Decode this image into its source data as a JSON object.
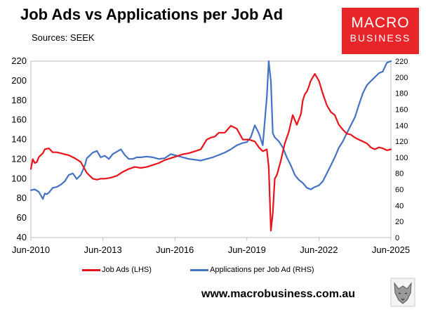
{
  "header": {
    "title": "Job Ads vs Applications per Job Ad",
    "subtitle": "Sources: SEEK"
  },
  "logo": {
    "line1": "MACRO",
    "line2": "BUSINESS"
  },
  "footer": {
    "website": "www.macrobusiness.com.au"
  },
  "chart_data": {
    "type": "line",
    "title": "Job Ads vs Applications per Job Ad",
    "xlabel": "",
    "ylabel_left": "",
    "ylabel_right": "",
    "x_ticks": [
      "Jun-2010",
      "Jun-2013",
      "Jun-2016",
      "Jun-2019",
      "Jun-2022",
      "Jun-2025"
    ],
    "y_left_ticks": [
      "40",
      "60",
      "80",
      "100",
      "120",
      "140",
      "160",
      "180",
      "200",
      "220"
    ],
    "y_right_ticks": [
      "0",
      "20",
      "40",
      "60",
      "80",
      "100",
      "120",
      "140",
      "160",
      "180",
      "200",
      "220"
    ],
    "ylim_left": [
      40,
      220
    ],
    "ylim_right": [
      0,
      220
    ],
    "xlim": [
      2010.42,
      2025.42
    ],
    "grid": false,
    "legend_position": "bottom",
    "series": [
      {
        "name": "Job Ads (LHS)",
        "axis": "left",
        "color": "#e8141b",
        "x": [
          2010.42,
          2010.5,
          2010.58,
          2010.67,
          2010.75,
          2010.83,
          2010.92,
          2011.0,
          2011.17,
          2011.33,
          2011.5,
          2011.67,
          2011.83,
          2012.0,
          2012.25,
          2012.5,
          2012.75,
          2013.0,
          2013.17,
          2013.33,
          2013.5,
          2013.75,
          2014.0,
          2014.25,
          2014.5,
          2014.75,
          2015.0,
          2015.25,
          2015.5,
          2015.75,
          2016.0,
          2016.25,
          2016.5,
          2016.75,
          2017.0,
          2017.25,
          2017.5,
          2017.75,
          2017.92,
          2018.08,
          2018.25,
          2018.5,
          2018.75,
          2019.0,
          2019.25,
          2019.5,
          2019.75,
          2019.92,
          2020.08,
          2020.25,
          2020.33,
          2020.42,
          2020.5,
          2020.58,
          2020.67,
          2020.83,
          2021.0,
          2021.17,
          2021.33,
          2021.5,
          2021.67,
          2021.75,
          2021.83,
          2021.92,
          2022.0,
          2022.08,
          2022.25,
          2022.42,
          2022.58,
          2022.75,
          2022.92,
          2023.08,
          2023.25,
          2023.42,
          2023.58,
          2023.75,
          2023.92,
          2024.08,
          2024.25,
          2024.42,
          2024.58,
          2024.75,
          2024.92,
          2025.08,
          2025.25,
          2025.42
        ],
        "values": [
          110,
          120,
          116,
          117,
          122,
          124,
          126,
          130,
          131,
          127,
          127,
          126,
          125,
          124,
          121,
          117,
          106,
          100,
          99,
          100,
          100,
          101,
          103,
          107,
          110,
          112,
          111,
          112,
          114,
          116,
          119,
          121,
          123,
          125,
          126,
          128,
          130,
          140,
          142,
          143,
          147,
          147,
          154,
          151,
          140,
          140,
          138,
          132,
          128,
          130,
          112,
          47,
          65,
          100,
          104,
          118,
          136,
          148,
          165,
          155,
          166,
          180,
          186,
          189,
          194,
          200,
          207,
          200,
          187,
          175,
          168,
          165,
          155,
          150,
          146,
          145,
          142,
          140,
          138,
          136,
          132,
          130,
          132,
          131,
          129,
          130
        ]
      },
      {
        "name": "Applications per Job Ad (RHS)",
        "axis": "right",
        "color": "#4472c4",
        "x": [
          2010.42,
          2010.58,
          2010.75,
          2010.92,
          2011.0,
          2011.08,
          2011.17,
          2011.33,
          2011.5,
          2011.67,
          2011.83,
          2012.0,
          2012.17,
          2012.33,
          2012.5,
          2012.67,
          2012.75,
          2012.83,
          2013.0,
          2013.17,
          2013.33,
          2013.5,
          2013.67,
          2013.83,
          2014.0,
          2014.17,
          2014.33,
          2014.5,
          2014.67,
          2014.83,
          2015.0,
          2015.25,
          2015.5,
          2015.75,
          2016.0,
          2016.25,
          2016.5,
          2016.75,
          2017.0,
          2017.25,
          2017.5,
          2017.75,
          2018.0,
          2018.25,
          2018.5,
          2018.75,
          2019.0,
          2019.25,
          2019.42,
          2019.58,
          2019.75,
          2019.92,
          2020.08,
          2020.25,
          2020.33,
          2020.42,
          2020.5,
          2020.58,
          2020.75,
          2020.92,
          2021.08,
          2021.25,
          2021.42,
          2021.58,
          2021.75,
          2021.92,
          2022.08,
          2022.25,
          2022.42,
          2022.58,
          2022.75,
          2022.92,
          2023.08,
          2023.25,
          2023.42,
          2023.58,
          2023.75,
          2023.92,
          2024.08,
          2024.25,
          2024.42,
          2024.58,
          2024.75,
          2024.92,
          2025.08,
          2025.25,
          2025.42
        ],
        "values": [
          59,
          60,
          57,
          48,
          55,
          54,
          56,
          62,
          63,
          66,
          70,
          78,
          80,
          73,
          78,
          90,
          99,
          101,
          106,
          108,
          100,
          102,
          98,
          104,
          107,
          110,
          103,
          98,
          98,
          100,
          100,
          101,
          100,
          98,
          99,
          104,
          102,
          100,
          98,
          97,
          96,
          98,
          100,
          103,
          106,
          110,
          115,
          118,
          119,
          125,
          140,
          130,
          115,
          175,
          220,
          195,
          130,
          125,
          120,
          112,
          100,
          90,
          78,
          72,
          68,
          62,
          60,
          63,
          65,
          70,
          80,
          90,
          100,
          112,
          120,
          130,
          140,
          150,
          165,
          180,
          190,
          195,
          200,
          205,
          207,
          218,
          220
        ]
      }
    ]
  }
}
